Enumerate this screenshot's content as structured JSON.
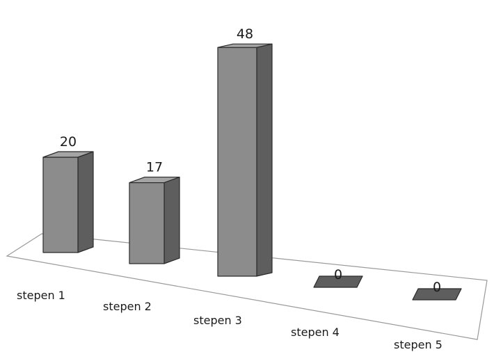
{
  "chart_data": {
    "type": "bar",
    "style": "3d-column",
    "categories": [
      "stepen 1",
      "stepen 2",
      "stepen 3",
      "stepen 4",
      "stepen 5"
    ],
    "values": [
      20,
      17,
      48,
      0,
      0
    ],
    "data_labels": [
      "20",
      "17",
      "48",
      "0",
      "0"
    ],
    "title": "",
    "xlabel": "",
    "ylabel": "",
    "grid": false,
    "legend": "none",
    "colors": {
      "front": "#8c8c8c",
      "side": "#5e5e5e",
      "top": "#a4a4a4",
      "outline": "#2b2b2b",
      "floor_border": "#9a9a9a"
    }
  }
}
